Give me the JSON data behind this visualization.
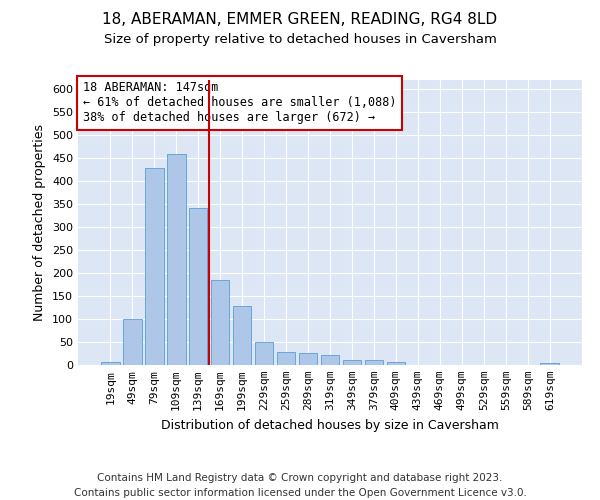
{
  "title1": "18, ABERAMAN, EMMER GREEN, READING, RG4 8LD",
  "title2": "Size of property relative to detached houses in Caversham",
  "xlabel": "Distribution of detached houses by size in Caversham",
  "ylabel": "Number of detached properties",
  "categories": [
    "19sqm",
    "49sqm",
    "79sqm",
    "109sqm",
    "139sqm",
    "169sqm",
    "199sqm",
    "229sqm",
    "259sqm",
    "289sqm",
    "319sqm",
    "349sqm",
    "379sqm",
    "409sqm",
    "439sqm",
    "469sqm",
    "499sqm",
    "529sqm",
    "559sqm",
    "589sqm",
    "619sqm"
  ],
  "values": [
    7,
    100,
    428,
    460,
    341,
    185,
    128,
    51,
    28,
    27,
    21,
    11,
    10,
    6,
    0,
    0,
    1,
    0,
    0,
    0,
    4
  ],
  "bar_color": "#aec6e8",
  "bar_edge_color": "#5a9ed6",
  "vline_x": 4.5,
  "vline_color": "#cc0000",
  "annotation_text": "18 ABERAMAN: 147sqm\n← 61% of detached houses are smaller (1,088)\n38% of detached houses are larger (672) →",
  "annotation_box_color": "#ffffff",
  "annotation_box_edge": "#cc0000",
  "ylim": [
    0,
    620
  ],
  "yticks": [
    0,
    50,
    100,
    150,
    200,
    250,
    300,
    350,
    400,
    450,
    500,
    550,
    600
  ],
  "background_color": "#dce6f5",
  "footer_line1": "Contains HM Land Registry data © Crown copyright and database right 2023.",
  "footer_line2": "Contains public sector information licensed under the Open Government Licence v3.0.",
  "title1_fontsize": 11,
  "title2_fontsize": 9.5,
  "axis_label_fontsize": 9,
  "tick_fontsize": 8,
  "annotation_fontsize": 8.5,
  "footer_fontsize": 7.5
}
